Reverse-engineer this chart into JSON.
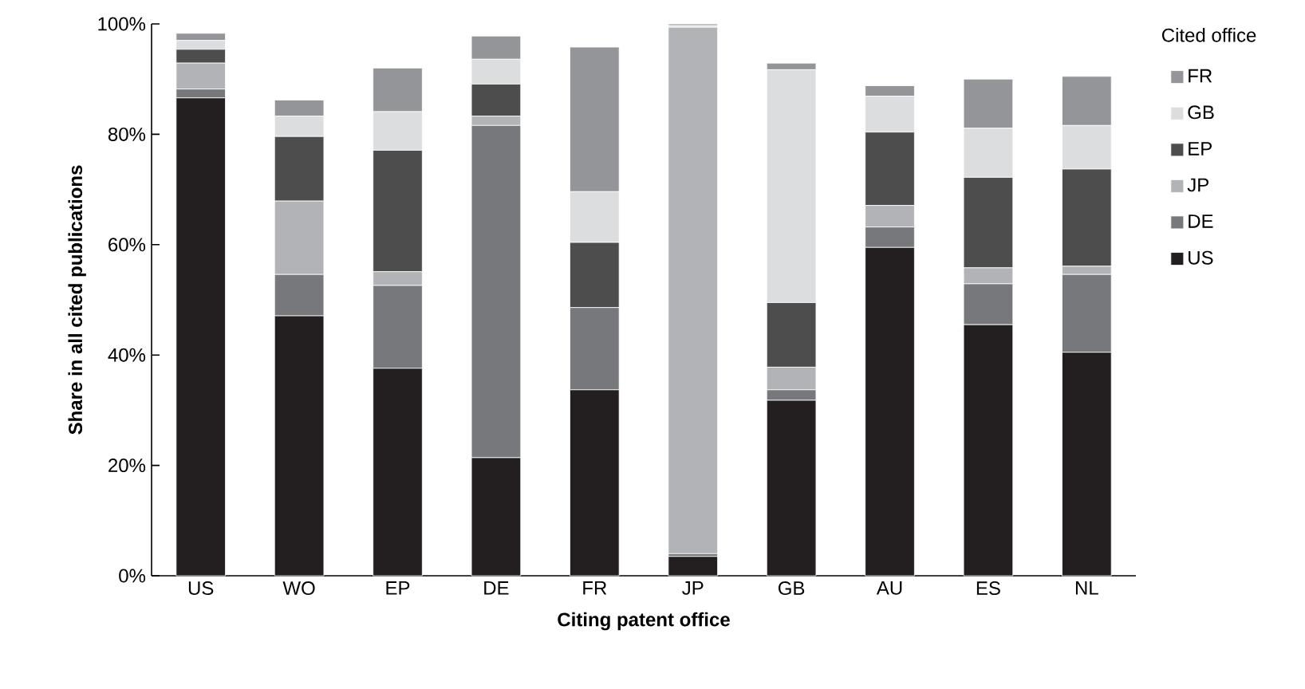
{
  "chart_data": {
    "type": "bar",
    "stacked": true,
    "xlabel": "Citing patent office",
    "ylabel": "Share in all cited publications",
    "legend_title": "Cited office",
    "legend": "right",
    "categories": [
      "US",
      "WO",
      "EP",
      "DE",
      "FR",
      "JP",
      "GB",
      "AU",
      "ES",
      "NL"
    ],
    "ylim": [
      0,
      100
    ],
    "yticks": [
      {
        "value": 0,
        "label": "0%"
      },
      {
        "value": 20,
        "label": "20%"
      },
      {
        "value": 40,
        "label": "40%"
      },
      {
        "value": 60,
        "label": "60%"
      },
      {
        "value": 80,
        "label": "80%"
      },
      {
        "value": 100,
        "label": "100%"
      }
    ],
    "series": [
      {
        "name": "US",
        "color": "#231f20",
        "values": [
          86.6,
          47.1,
          37.6,
          21.4,
          33.7,
          3.5,
          31.8,
          59.5,
          45.5,
          40.5
        ]
      },
      {
        "name": "DE",
        "color": "#77787b",
        "values": [
          1.6,
          7.5,
          15.0,
          60.2,
          14.9,
          0.5,
          1.9,
          3.7,
          7.4,
          14.1
        ]
      },
      {
        "name": "JP",
        "color": "#b1b3b6",
        "values": [
          4.7,
          13.3,
          2.5,
          1.7,
          0,
          95.4,
          4.1,
          3.9,
          2.9,
          1.5
        ]
      },
      {
        "name": "EP",
        "color": "#4d4d4d",
        "values": [
          2.5,
          11.7,
          22.0,
          5.8,
          11.8,
          0,
          11.7,
          13.3,
          16.4,
          17.6
        ]
      },
      {
        "name": "GB",
        "color": "#dcddde",
        "values": [
          1.6,
          3.7,
          7.0,
          4.5,
          9.2,
          0.3,
          42.2,
          6.5,
          8.9,
          7.9
        ]
      },
      {
        "name": "FR",
        "color": "#939598",
        "values": [
          1.3,
          2.9,
          7.9,
          4.2,
          26.2,
          0.3,
          1.2,
          1.9,
          8.9,
          8.9
        ]
      }
    ]
  }
}
